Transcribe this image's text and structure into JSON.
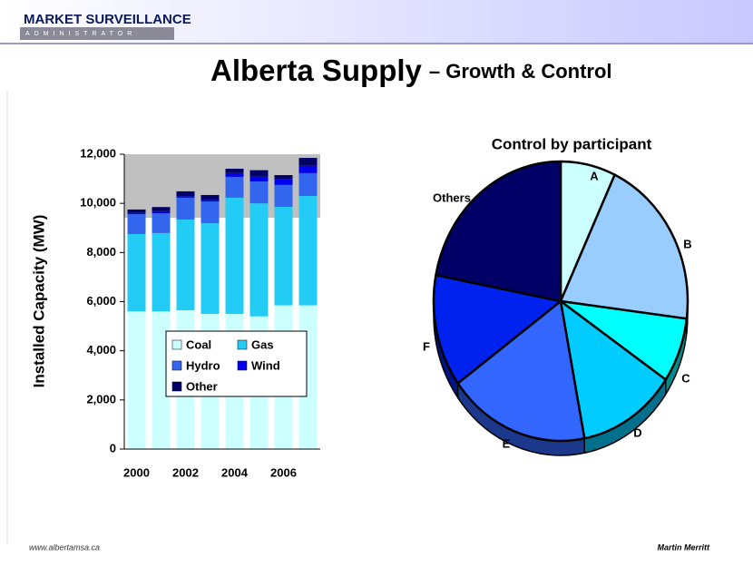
{
  "header": {
    "logo": "MARKET SURVEILLANCE",
    "logo_sub": "ADMINISTRATOR",
    "title": "Alberta Supply",
    "subtitle": "– Growth & Control"
  },
  "footer": {
    "left": "www.albertamsa.ca",
    "right": "Martin Merritt"
  },
  "chart_data": [
    {
      "type": "bar",
      "stacked": true,
      "ylabel": "Installed Capacity (MW)",
      "categories": [
        "2000",
        null,
        "2002",
        null,
        "2004",
        null,
        "2006",
        null
      ],
      "series": [
        {
          "name": "Coal",
          "color": "#ccffff",
          "values": [
            5600,
            5600,
            5650,
            5500,
            5500,
            5400,
            5850,
            5850
          ]
        },
        {
          "name": "Gas",
          "color": "#22ccf5",
          "values": [
            3150,
            3190,
            3690,
            3690,
            4730,
            4600,
            4010,
            4450
          ]
        },
        {
          "name": "Hydro",
          "color": "#3366ee",
          "values": [
            810,
            810,
            890,
            890,
            850,
            890,
            890,
            930
          ]
        },
        {
          "name": "Wind",
          "color": "#0000ee",
          "values": [
            50,
            80,
            60,
            60,
            150,
            200,
            250,
            300
          ]
        },
        {
          "name": "Other",
          "color": "#000066",
          "values": [
            140,
            170,
            200,
            200,
            180,
            260,
            150,
            320
          ]
        }
      ],
      "ylim": [
        0,
        12000
      ],
      "yticks": [
        0,
        {
          "value": 2000,
          "label": "2,000"
        },
        {
          "value": 4000,
          "label": "4,000"
        },
        {
          "value": 6000,
          "label": "6,000"
        },
        {
          "value": 8000,
          "label": "8,000"
        },
        {
          "value": 10000,
          "label": "10,000"
        },
        {
          "value": 12000,
          "label": "12,000"
        }
      ]
    },
    {
      "type": "pie",
      "title": "Control by participant",
      "categories": [
        "A",
        "B",
        "C",
        "D",
        "E",
        "F",
        "Others"
      ],
      "values": [
        7,
        20,
        7.5,
        12.5,
        18,
        13,
        22
      ],
      "colors": [
        "#ccffff",
        "#99ccff",
        "#00ffff",
        "#00ccff",
        "#3366ff",
        "#0022ee",
        "#000066"
      ]
    }
  ]
}
